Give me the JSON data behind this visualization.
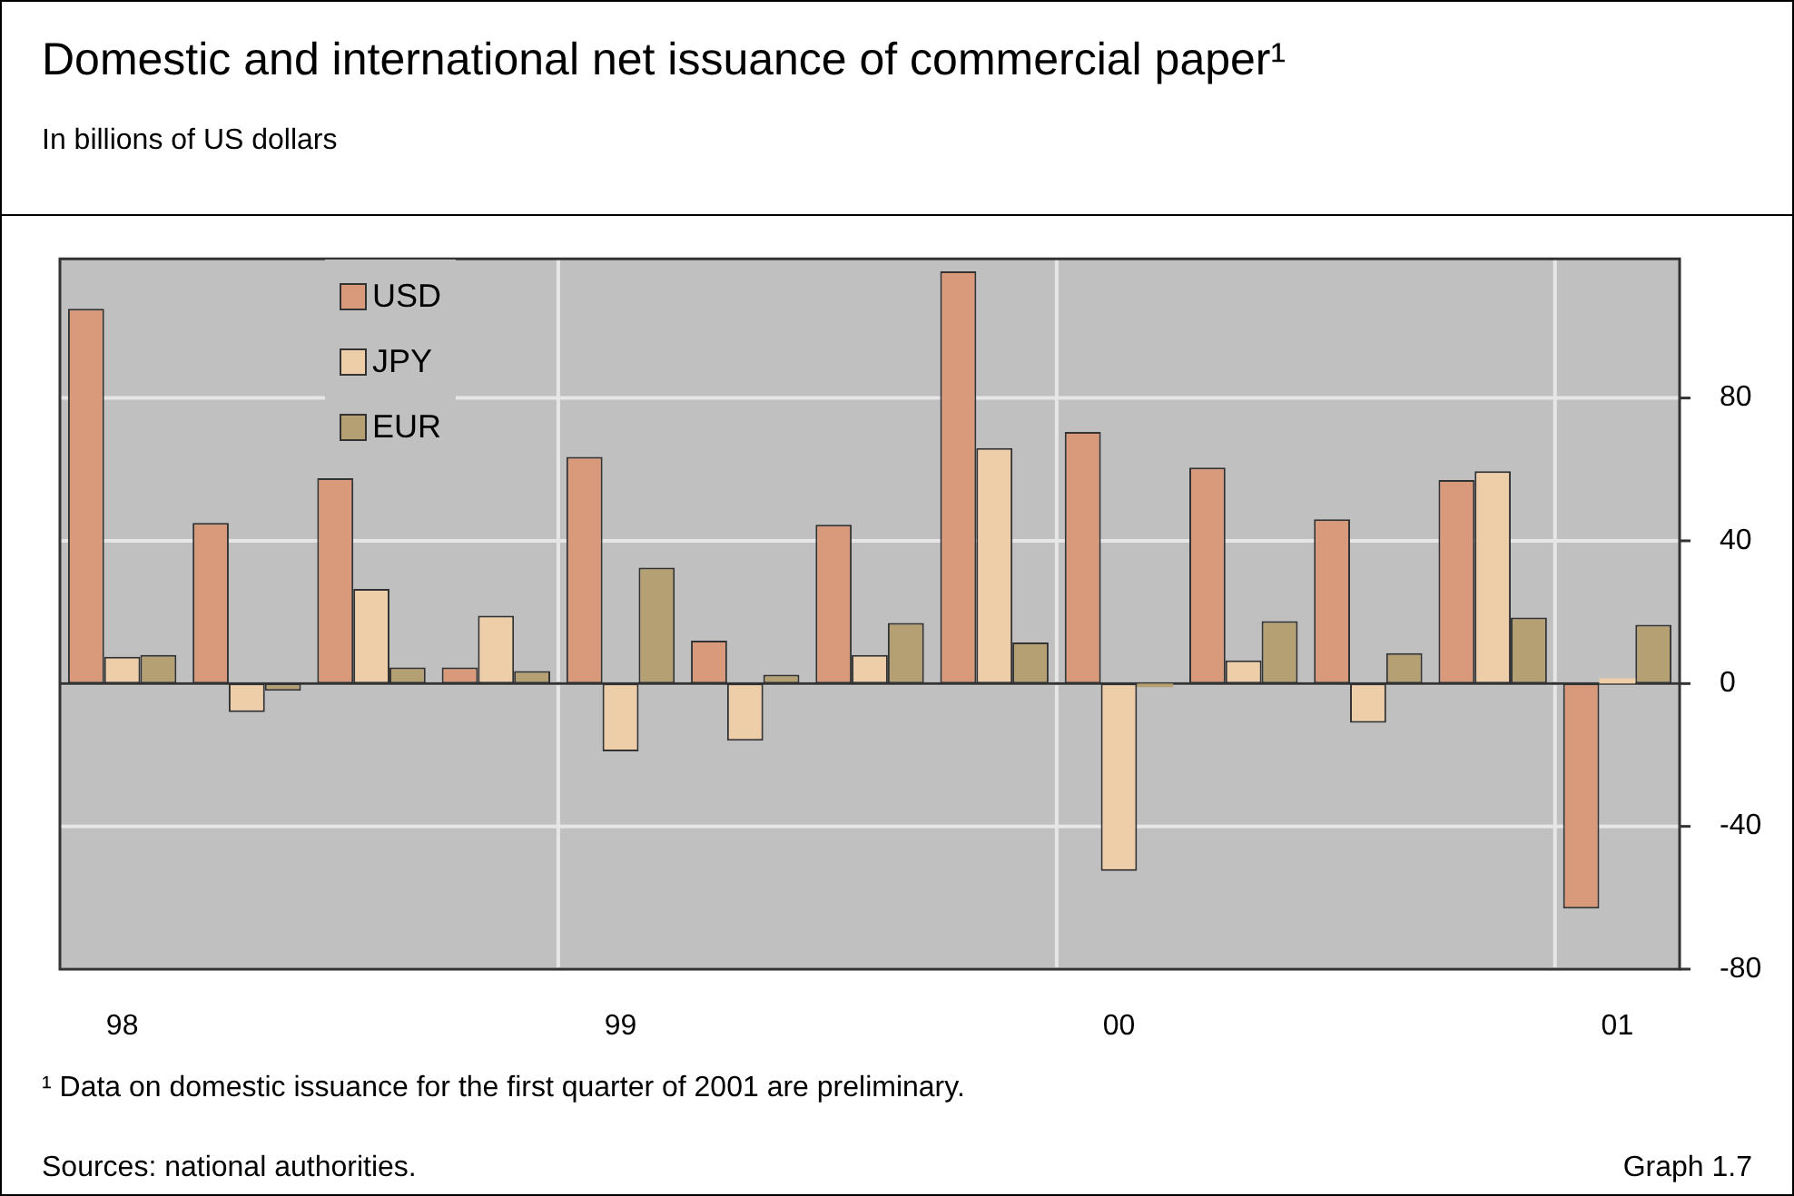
{
  "chart_data": {
    "type": "bar",
    "title": "Domestic and international net issuance of commercial paper¹",
    "subtitle": "In billions of US dollars",
    "categories": [
      "98",
      null,
      null,
      null,
      "99",
      null,
      null,
      null,
      "00",
      null,
      null,
      null,
      "01"
    ],
    "series": [
      {
        "name": "USD",
        "color": "#d89a7a",
        "values": [
          105,
          45,
          57.5,
          4.5,
          63.5,
          12,
          44.5,
          115.5,
          70.5,
          60.5,
          46,
          57,
          -63
        ]
      },
      {
        "name": "JPY",
        "color": "#eecda9",
        "values": [
          7.5,
          -8,
          26.5,
          19,
          -19,
          -16,
          8,
          66,
          -52.5,
          6.5,
          -11,
          59.5,
          1.5
        ]
      },
      {
        "name": "EUR",
        "color": "#b5a074",
        "values": [
          8,
          -2,
          4.5,
          3.5,
          32.5,
          2.5,
          17,
          11.5,
          -1,
          17.5,
          8.5,
          18.5,
          16.5
        ]
      }
    ],
    "ylim": [
      -80,
      119
    ],
    "yticks": [
      -80,
      -40,
      0,
      40,
      80
    ],
    "grid": true,
    "legend": "top left",
    "annotations": [
      "¹  Data on domestic issuance for the first quarter of 2001 are preliminary.",
      "Sources: national authorities.",
      "Graph 1.7"
    ]
  }
}
